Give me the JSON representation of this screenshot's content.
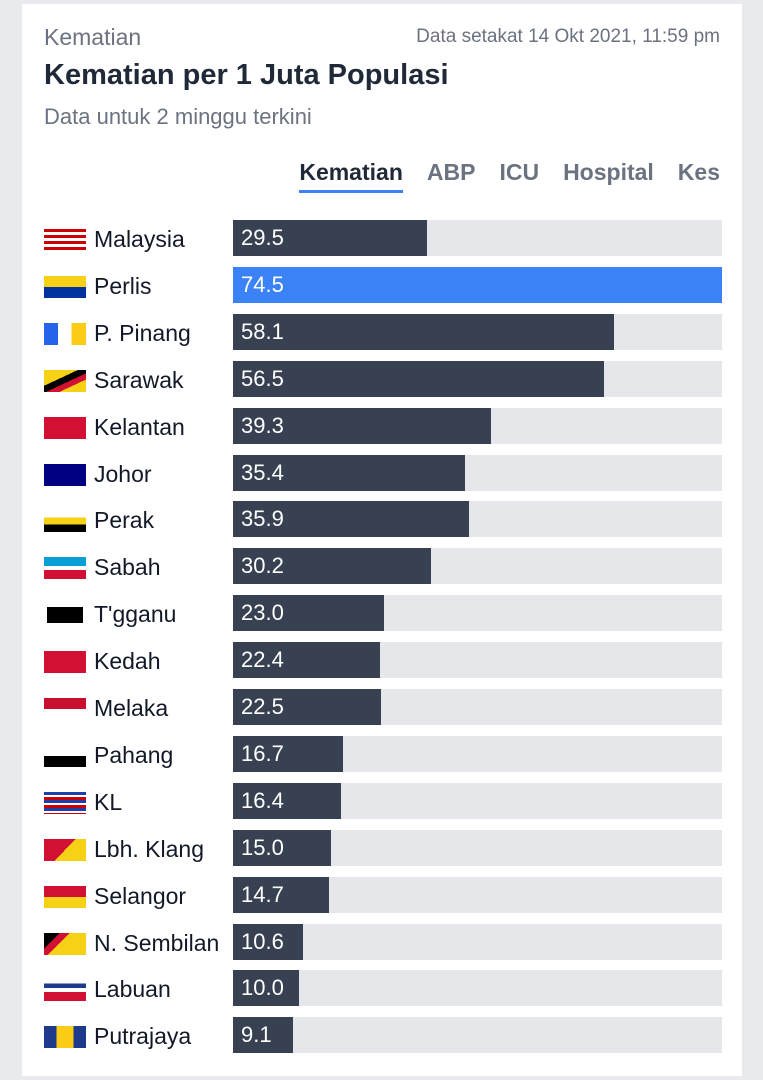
{
  "header": {
    "label": "Kematian",
    "as_of": "Data setakat 14 Okt 2021, 11:59 pm",
    "title": "Kematian per 1 Juta Populasi",
    "subtitle": "Data untuk 2 minggu terkini"
  },
  "tabs": [
    {
      "label": "Kematian",
      "active": true
    },
    {
      "label": "ABP",
      "active": false
    },
    {
      "label": "ICU",
      "active": false
    },
    {
      "label": "Hospital",
      "active": false
    },
    {
      "label": "Kes",
      "active": false
    }
  ],
  "colors": {
    "bar": "#374151",
    "highlight": "#3b82f6",
    "track": "#e5e7eb"
  },
  "chart_data": {
    "type": "bar",
    "orientation": "horizontal",
    "title": "Kematian per 1 Juta Populasi",
    "subtitle": "Data untuk 2 minggu terkini",
    "xlim": [
      0,
      74.5
    ],
    "highlight": "Perlis",
    "categories": [
      "Malaysia",
      "Perlis",
      "P. Pinang",
      "Sarawak",
      "Kelantan",
      "Johor",
      "Perak",
      "Sabah",
      "T'gganu",
      "Kedah",
      "Melaka",
      "Pahang",
      "KL",
      "Lbh. Klang",
      "Selangor",
      "N. Sembilan",
      "Labuan",
      "Putrajaya"
    ],
    "values": [
      29.5,
      74.5,
      58.1,
      56.5,
      39.3,
      35.4,
      35.9,
      30.2,
      23.0,
      22.4,
      22.5,
      16.7,
      16.4,
      15.0,
      14.7,
      10.6,
      10.0,
      9.1
    ],
    "value_labels": [
      "29.5",
      "74.5",
      "58.1",
      "56.5",
      "39.3",
      "35.4",
      "35.9",
      "30.2",
      "23.0",
      "22.4",
      "22.5",
      "16.7",
      "16.4",
      "15.0",
      "14.7",
      "10.6",
      "10.0",
      "9.1"
    ],
    "flag_icons": [
      "flag-malaysia-icon",
      "flag-perlis-icon",
      "flag-penang-icon",
      "flag-sarawak-icon",
      "flag-kelantan-icon",
      "flag-johor-icon",
      "flag-perak-icon",
      "flag-sabah-icon",
      "flag-terengganu-icon",
      "flag-kedah-icon",
      "flag-melaka-icon",
      "flag-pahang-icon",
      "flag-kl-icon",
      "flag-klang-icon",
      "flag-selangor-icon",
      "flag-negeri-sembilan-icon",
      "flag-labuan-icon",
      "flag-putrajaya-icon"
    ]
  }
}
